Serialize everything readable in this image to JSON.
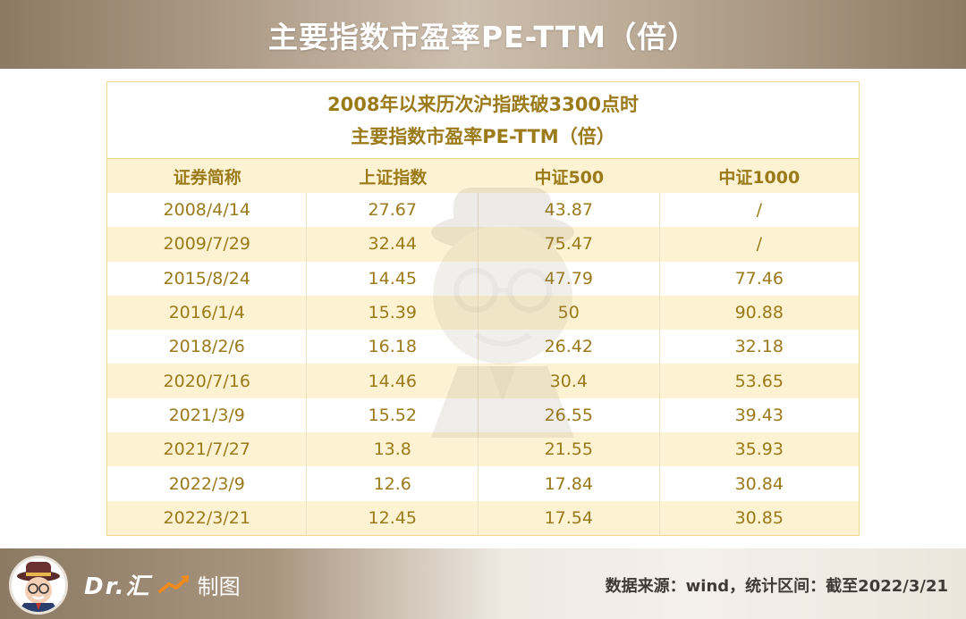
{
  "header": {
    "title": "主要指数市盈率PE-TTM（倍）"
  },
  "table": {
    "title_line1": "2008年以来历次沪指跌破3300点时",
    "title_line2": "主要指数市盈率PE-TTM（倍）",
    "columns": [
      "证券简称",
      "上证指数",
      "中证500",
      "中证1000"
    ],
    "rows": [
      [
        "2008/4/14",
        "27.67",
        "43.87",
        "/"
      ],
      [
        "2009/7/29",
        "32.44",
        "75.47",
        "/"
      ],
      [
        "2015/8/24",
        "14.45",
        "47.79",
        "77.46"
      ],
      [
        "2016/1/4",
        "15.39",
        "50",
        "90.88"
      ],
      [
        "2018/2/6",
        "16.18",
        "26.42",
        "32.18"
      ],
      [
        "2020/7/16",
        "14.46",
        "30.4",
        "53.65"
      ],
      [
        "2021/3/9",
        "15.52",
        "26.55",
        "39.43"
      ],
      [
        "2021/7/27",
        "13.8",
        "21.55",
        "35.93"
      ],
      [
        "2022/3/9",
        "12.6",
        "17.84",
        "30.84"
      ],
      [
        "2022/3/21",
        "12.45",
        "17.54",
        "30.85"
      ]
    ]
  },
  "footer": {
    "brand_name": "Dr.汇",
    "brand_suffix": "制图",
    "source": "数据来源：wind，统计区间：截至2022/3/21",
    "avatar_icon": "mascot-avatar-icon",
    "trend_icon": "trend-up-arrow-icon"
  },
  "colors": {
    "accent_text": "#9b7a1a",
    "row_alt_bg": "#fdf3d2",
    "border": "#f0d98e",
    "banner": "#8d7a65"
  }
}
